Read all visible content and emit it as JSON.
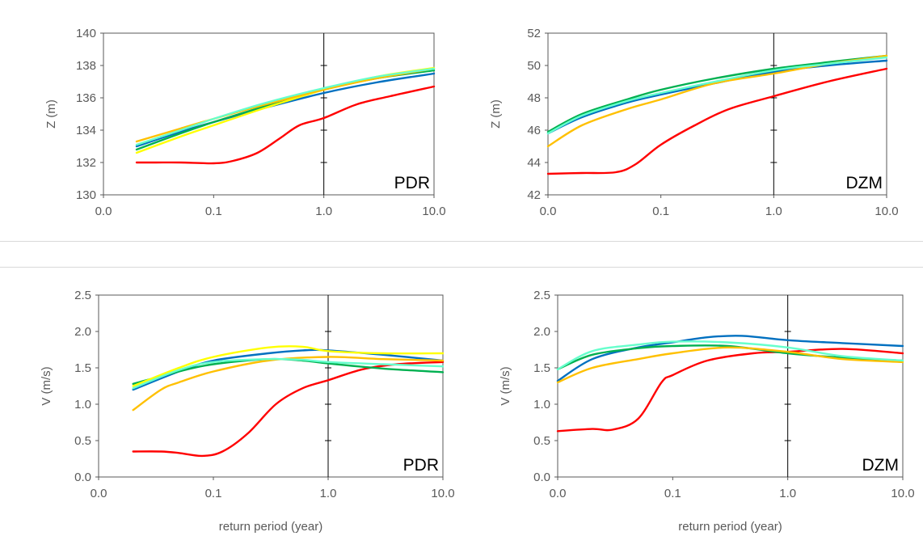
{
  "chart_data": [
    {
      "type": "line",
      "panel_label": "PDR",
      "ylabel": "Z (m)",
      "xlabel": "",
      "x_scale": "log",
      "xlim": [
        0.01,
        10
      ],
      "ylim": [
        130,
        140
      ],
      "x_ticks": [
        "0.0",
        "0.1",
        "1.0",
        "10.0"
      ],
      "y_ticks": [
        "130",
        "132",
        "134",
        "136",
        "138",
        "140"
      ],
      "reference_line_x": 1.0,
      "series": [
        {
          "color": "#ff0000",
          "points": [
            [
              0.02,
              132.0
            ],
            [
              0.03,
              132.0
            ],
            [
              0.05,
              132.0
            ],
            [
              0.1,
              131.95
            ],
            [
              0.15,
              132.1
            ],
            [
              0.25,
              132.6
            ],
            [
              0.4,
              133.5
            ],
            [
              0.6,
              134.3
            ],
            [
              1.0,
              134.75
            ],
            [
              2.0,
              135.6
            ],
            [
              4.0,
              136.1
            ],
            [
              10.0,
              136.7
            ]
          ]
        },
        {
          "color": "#0070c0",
          "points": [
            [
              0.02,
              133.0
            ],
            [
              0.05,
              133.9
            ],
            [
              0.1,
              134.5
            ],
            [
              0.3,
              135.4
            ],
            [
              1.0,
              136.3
            ],
            [
              3.0,
              136.95
            ],
            [
              10.0,
              137.5
            ]
          ]
        },
        {
          "color": "#00b050",
          "points": [
            [
              0.02,
              132.8
            ],
            [
              0.05,
              133.8
            ],
            [
              0.1,
              134.5
            ],
            [
              0.3,
              135.5
            ],
            [
              1.0,
              136.5
            ],
            [
              3.0,
              137.2
            ],
            [
              10.0,
              137.7
            ]
          ]
        },
        {
          "color": "#ffff00",
          "points": [
            [
              0.02,
              132.6
            ],
            [
              0.05,
              133.6
            ],
            [
              0.1,
              134.3
            ],
            [
              0.3,
              135.4
            ],
            [
              1.0,
              136.5
            ],
            [
              3.0,
              137.3
            ],
            [
              10.0,
              137.85
            ]
          ]
        },
        {
          "color": "#ffc000",
          "points": [
            [
              0.02,
              133.3
            ],
            [
              0.05,
              134.1
            ],
            [
              0.1,
              134.7
            ],
            [
              0.3,
              135.6
            ],
            [
              1.0,
              136.5
            ],
            [
              3.0,
              137.2
            ],
            [
              10.0,
              137.8
            ]
          ]
        },
        {
          "color": "#66ffcc",
          "points": [
            [
              0.02,
              133.1
            ],
            [
              0.05,
              134.0
            ],
            [
              0.1,
              134.7
            ],
            [
              0.3,
              135.7
            ],
            [
              1.0,
              136.6
            ],
            [
              3.0,
              137.3
            ],
            [
              10.0,
              137.8
            ]
          ]
        }
      ]
    },
    {
      "type": "line",
      "panel_label": "DZM",
      "ylabel": "Z (m)",
      "xlabel": "",
      "x_scale": "log",
      "xlim": [
        0.01,
        10
      ],
      "ylim": [
        42,
        52
      ],
      "x_ticks": [
        "0.0",
        "0.1",
        "1.0",
        "10.0"
      ],
      "y_ticks": [
        "42",
        "44",
        "46",
        "48",
        "50",
        "52"
      ],
      "reference_line_x": 1.0,
      "series": [
        {
          "color": "#ff0000",
          "points": [
            [
              0.01,
              43.3
            ],
            [
              0.02,
              43.35
            ],
            [
              0.04,
              43.4
            ],
            [
              0.06,
              43.9
            ],
            [
              0.1,
              45.1
            ],
            [
              0.2,
              46.3
            ],
            [
              0.4,
              47.3
            ],
            [
              1.0,
              48.1
            ],
            [
              3.0,
              49.0
            ],
            [
              10.0,
              49.8
            ]
          ]
        },
        {
          "color": "#0070c0",
          "points": [
            [
              0.01,
              45.8
            ],
            [
              0.02,
              46.8
            ],
            [
              0.05,
              47.7
            ],
            [
              0.1,
              48.2
            ],
            [
              0.3,
              48.9
            ],
            [
              1.0,
              49.6
            ],
            [
              3.0,
              50.0
            ],
            [
              10.0,
              50.3
            ]
          ]
        },
        {
          "color": "#00b050",
          "points": [
            [
              0.01,
              45.9
            ],
            [
              0.02,
              47.0
            ],
            [
              0.05,
              47.9
            ],
            [
              0.1,
              48.5
            ],
            [
              0.3,
              49.2
            ],
            [
              1.0,
              49.8
            ],
            [
              3.0,
              50.2
            ],
            [
              10.0,
              50.6
            ]
          ]
        },
        {
          "color": "#ffc000",
          "points": [
            [
              0.01,
              45.0
            ],
            [
              0.02,
              46.3
            ],
            [
              0.05,
              47.3
            ],
            [
              0.1,
              47.9
            ],
            [
              0.3,
              48.9
            ],
            [
              1.0,
              49.5
            ],
            [
              3.0,
              50.1
            ],
            [
              10.0,
              50.6
            ]
          ]
        },
        {
          "color": "#66ffcc",
          "points": [
            [
              0.01,
              45.8
            ],
            [
              0.02,
              46.9
            ],
            [
              0.05,
              47.8
            ],
            [
              0.1,
              48.3
            ],
            [
              0.3,
              49.0
            ],
            [
              1.0,
              49.7
            ],
            [
              3.0,
              50.1
            ],
            [
              10.0,
              50.5
            ]
          ]
        }
      ]
    },
    {
      "type": "line",
      "panel_label": "PDR",
      "ylabel": "V (m/s)",
      "xlabel": "return period (year)",
      "x_scale": "log",
      "xlim": [
        0.01,
        10
      ],
      "ylim": [
        0,
        2.5
      ],
      "x_ticks": [
        "0.0",
        "0.1",
        "1.0",
        "10.0"
      ],
      "y_ticks": [
        "0.0",
        "0.5",
        "1.0",
        "1.5",
        "2.0",
        "2.5"
      ],
      "reference_line_x": 1.0,
      "series": [
        {
          "color": "#ff0000",
          "points": [
            [
              0.02,
              0.35
            ],
            [
              0.035,
              0.35
            ],
            [
              0.05,
              0.33
            ],
            [
              0.08,
              0.29
            ],
            [
              0.12,
              0.35
            ],
            [
              0.2,
              0.6
            ],
            [
              0.35,
              1.0
            ],
            [
              0.6,
              1.22
            ],
            [
              1.0,
              1.33
            ],
            [
              2.0,
              1.48
            ],
            [
              4.0,
              1.55
            ],
            [
              10.0,
              1.58
            ]
          ]
        },
        {
          "color": "#0070c0",
          "points": [
            [
              0.02,
              1.2
            ],
            [
              0.05,
              1.45
            ],
            [
              0.1,
              1.6
            ],
            [
              0.3,
              1.7
            ],
            [
              0.6,
              1.74
            ],
            [
              1.0,
              1.74
            ],
            [
              3.0,
              1.68
            ],
            [
              10.0,
              1.6
            ]
          ]
        },
        {
          "color": "#00b050",
          "points": [
            [
              0.02,
              1.28
            ],
            [
              0.05,
              1.45
            ],
            [
              0.1,
              1.55
            ],
            [
              0.3,
              1.62
            ],
            [
              0.6,
              1.6
            ],
            [
              1.0,
              1.56
            ],
            [
              3.0,
              1.49
            ],
            [
              10.0,
              1.44
            ]
          ]
        },
        {
          "color": "#ffff00",
          "points": [
            [
              0.02,
              1.25
            ],
            [
              0.05,
              1.5
            ],
            [
              0.1,
              1.65
            ],
            [
              0.3,
              1.78
            ],
            [
              0.6,
              1.79
            ],
            [
              1.0,
              1.73
            ],
            [
              3.0,
              1.7
            ],
            [
              10.0,
              1.7
            ]
          ]
        },
        {
          "color": "#ffc000",
          "points": [
            [
              0.02,
              0.92
            ],
            [
              0.035,
              1.2
            ],
            [
              0.05,
              1.3
            ],
            [
              0.1,
              1.45
            ],
            [
              0.3,
              1.6
            ],
            [
              1.0,
              1.65
            ],
            [
              3.0,
              1.62
            ],
            [
              10.0,
              1.6
            ]
          ]
        },
        {
          "color": "#66ffcc",
          "points": [
            [
              0.02,
              1.22
            ],
            [
              0.05,
              1.47
            ],
            [
              0.1,
              1.58
            ],
            [
              0.3,
              1.62
            ],
            [
              0.6,
              1.61
            ],
            [
              1.0,
              1.58
            ],
            [
              3.0,
              1.55
            ],
            [
              10.0,
              1.52
            ]
          ]
        }
      ]
    },
    {
      "type": "line",
      "panel_label": "DZM",
      "ylabel": "V (m/s)",
      "xlabel": "return period (year)",
      "x_scale": "log",
      "xlim": [
        0.01,
        10
      ],
      "ylim": [
        0,
        2.5
      ],
      "x_ticks": [
        "0.0",
        "0.1",
        "1.0",
        "10.0"
      ],
      "y_ticks": [
        "0.0",
        "0.5",
        "1.0",
        "1.5",
        "2.0",
        "2.5"
      ],
      "reference_line_x": 1.0,
      "series": [
        {
          "color": "#ff0000",
          "points": [
            [
              0.01,
              0.63
            ],
            [
              0.02,
              0.66
            ],
            [
              0.03,
              0.65
            ],
            [
              0.05,
              0.8
            ],
            [
              0.08,
              1.3
            ],
            [
              0.1,
              1.4
            ],
            [
              0.2,
              1.6
            ],
            [
              0.5,
              1.7
            ],
            [
              1.0,
              1.72
            ],
            [
              3.0,
              1.76
            ],
            [
              10.0,
              1.7
            ]
          ]
        },
        {
          "color": "#0070c0",
          "points": [
            [
              0.01,
              1.32
            ],
            [
              0.02,
              1.62
            ],
            [
              0.05,
              1.78
            ],
            [
              0.1,
              1.85
            ],
            [
              0.2,
              1.92
            ],
            [
              0.4,
              1.94
            ],
            [
              1.0,
              1.88
            ],
            [
              3.0,
              1.84
            ],
            [
              10.0,
              1.8
            ]
          ]
        },
        {
          "color": "#00b050",
          "points": [
            [
              0.01,
              1.48
            ],
            [
              0.02,
              1.68
            ],
            [
              0.05,
              1.77
            ],
            [
              0.1,
              1.8
            ],
            [
              0.3,
              1.8
            ],
            [
              1.0,
              1.7
            ],
            [
              3.0,
              1.64
            ],
            [
              10.0,
              1.6
            ]
          ]
        },
        {
          "color": "#ffc000",
          "points": [
            [
              0.01,
              1.3
            ],
            [
              0.02,
              1.5
            ],
            [
              0.05,
              1.62
            ],
            [
              0.1,
              1.7
            ],
            [
              0.3,
              1.78
            ],
            [
              1.0,
              1.72
            ],
            [
              3.0,
              1.62
            ],
            [
              10.0,
              1.58
            ]
          ]
        },
        {
          "color": "#66ffcc",
          "points": [
            [
              0.01,
              1.48
            ],
            [
              0.02,
              1.73
            ],
            [
              0.05,
              1.82
            ],
            [
              0.1,
              1.86
            ],
            [
              0.3,
              1.85
            ],
            [
              1.0,
              1.78
            ],
            [
              3.0,
              1.66
            ],
            [
              10.0,
              1.6
            ]
          ]
        }
      ]
    }
  ]
}
